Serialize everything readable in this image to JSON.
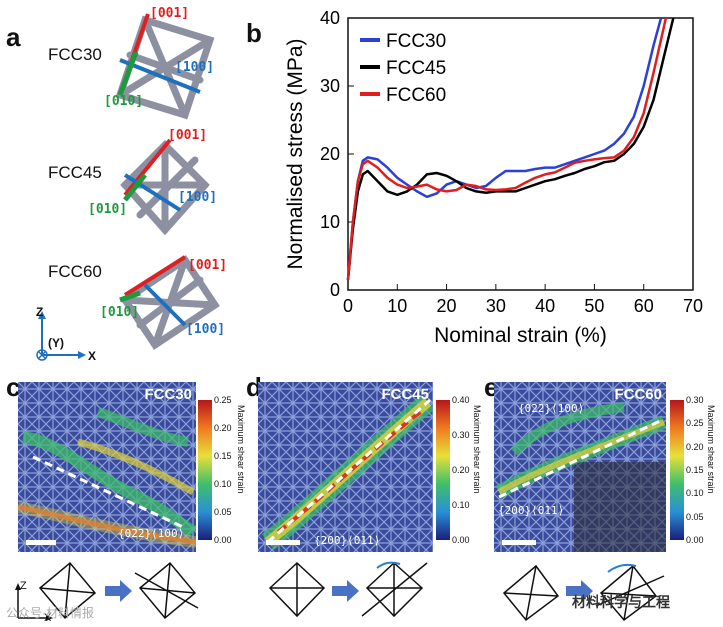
{
  "panels": {
    "a": "a",
    "b": "b",
    "c": "c",
    "d": "d",
    "e": "e"
  },
  "lattices": [
    {
      "name": "FCC30",
      "dir_001": "[001]",
      "dir_100": "[100]",
      "dir_010": "[010]"
    },
    {
      "name": "FCC45",
      "dir_001": "[001]",
      "dir_100": "[100]",
      "dir_010": "[010]"
    },
    {
      "name": "FCC60",
      "dir_001": "[001]",
      "dir_100": "[100]",
      "dir_010": "[010]"
    }
  ],
  "coord_axes": {
    "z": "Z",
    "y": "(Y)",
    "x": "X"
  },
  "bottom_axes": {
    "z": "Z",
    "x": "X"
  },
  "colors": {
    "fcc30": "#2b3fd9",
    "fcc45": "#000000",
    "fcc60": "#e01e1e",
    "red_arrow": "#e02020",
    "blue_arrow": "#1f6fbf",
    "green_arrow": "#1e9a3e"
  },
  "chart_data": {
    "type": "line",
    "title": "",
    "xlabel": "Nominal strain (%)",
    "ylabel": "Normalised stress (MPa)",
    "xlim": [
      0,
      70
    ],
    "ylim": [
      0,
      40
    ],
    "xticks": [
      0,
      10,
      20,
      30,
      40,
      50,
      60,
      70
    ],
    "yticks": [
      0,
      10,
      20,
      30,
      40
    ],
    "legend_position": "top-left",
    "series": [
      {
        "name": "FCC30",
        "color": "#2b3fd9",
        "x": [
          0,
          1,
          2,
          3,
          4,
          6,
          8,
          10,
          12,
          14,
          16,
          18,
          20,
          22,
          24,
          26,
          28,
          30,
          32,
          34,
          36,
          38,
          40,
          42,
          44,
          46,
          48,
          50,
          52,
          54,
          56,
          58,
          60,
          62,
          63.5
        ],
        "y": [
          1.5,
          10,
          16,
          19,
          19.5,
          19.2,
          18,
          16.5,
          15.5,
          14.5,
          13.7,
          14.2,
          15.5,
          16,
          15.5,
          15,
          15.3,
          16.5,
          17.5,
          17.5,
          17.5,
          17.8,
          18,
          18,
          18.5,
          19,
          19.5,
          20,
          20.5,
          21.5,
          23,
          25.5,
          30,
          36,
          40
        ]
      },
      {
        "name": "FCC45",
        "color": "#000000",
        "x": [
          0,
          1,
          2,
          3,
          4,
          6,
          8,
          10,
          12,
          14,
          16,
          18,
          20,
          22,
          24,
          26,
          28,
          30,
          32,
          34,
          36,
          38,
          40,
          42,
          44,
          46,
          48,
          50,
          52,
          54,
          56,
          58,
          60,
          62,
          64,
          66
        ],
        "y": [
          1.5,
          9,
          14.5,
          17,
          17.5,
          16,
          14.5,
          14,
          14.5,
          15.5,
          17,
          17.2,
          16.8,
          16,
          15,
          14.5,
          14.3,
          14.5,
          14.5,
          14.5,
          15,
          15.5,
          16,
          16.3,
          16.8,
          17.2,
          17.8,
          18.2,
          18.8,
          19,
          20,
          21.5,
          24,
          28,
          34,
          40
        ]
      },
      {
        "name": "FCC60",
        "color": "#e01e1e",
        "x": [
          0,
          1,
          2,
          3,
          4,
          6,
          8,
          10,
          12,
          14,
          16,
          18,
          20,
          22,
          24,
          26,
          28,
          30,
          32,
          34,
          36,
          38,
          40,
          42,
          44,
          46,
          48,
          50,
          52,
          54,
          56,
          58,
          60,
          62,
          64.5
        ],
        "y": [
          1.5,
          10,
          16,
          18.5,
          19,
          18,
          16.5,
          15.5,
          15,
          15.2,
          15.5,
          14.8,
          14.5,
          14.7,
          15.5,
          15.3,
          14.8,
          14.7,
          14.8,
          15,
          15.8,
          16.5,
          17,
          17.3,
          18,
          18.7,
          19,
          19.2,
          19.4,
          19.5,
          20.5,
          22.5,
          26,
          32,
          40
        ]
      }
    ]
  },
  "strain_panels": [
    {
      "id": "c",
      "title": "FCC30",
      "plane": "{022}⟨100⟩",
      "cb_max": 0.25,
      "ticks": [
        "0.25",
        "0.20",
        "0.15",
        "0.10",
        "0.05",
        "0.00"
      ],
      "cb_label": "Maximum shear strain"
    },
    {
      "id": "d",
      "title": "FCC45",
      "plane": "{200}⟨011⟩",
      "cb_max": 0.4,
      "ticks": [
        "0.40",
        "0.30",
        "0.20",
        "0.10",
        "0.00"
      ],
      "cb_label": "Maximum shear strain"
    },
    {
      "id": "e",
      "title": "FCC60",
      "plane": "{200}⟨011⟩",
      "plane2": "{022}⟨100⟩",
      "cb_max": 0.3,
      "ticks": [
        "0.30",
        "0.25",
        "0.20",
        "0.15",
        "0.10",
        "0.05",
        "0.00"
      ],
      "cb_label": "Maximum shear strain"
    }
  ],
  "watermark": {
    "left": "公众号·材料情报",
    "right": "材料科学与工程"
  }
}
